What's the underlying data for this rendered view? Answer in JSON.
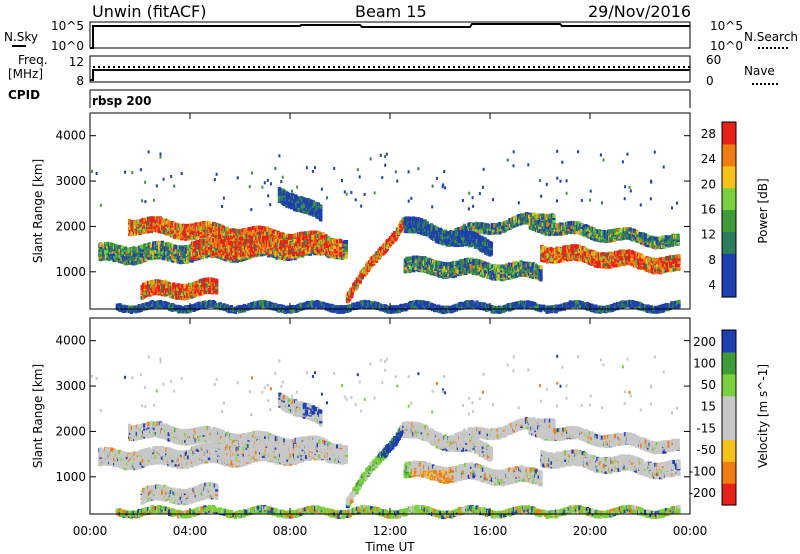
{
  "header": {
    "station": "Unwin (fitACF)",
    "beam": "Beam 15",
    "date": "29/Nov/2016"
  },
  "top_panels": {
    "nsky_label": "N.Sky",
    "nsearch_label": "N.Search",
    "nsky_ticks": [
      "10^5",
      "10^0"
    ],
    "freq_label": "Freq.",
    "freq_unit": "[MHz]",
    "freq_ticks": [
      "12",
      "8"
    ],
    "nave_label": "Nave",
    "nave_ticks": [
      "60",
      "0"
    ],
    "cpid_label": "CPID",
    "cpid_value": "rbsp 200"
  },
  "x_axis": {
    "label": "Time UT",
    "ticks": [
      "00:00",
      "04:00",
      "08:00",
      "12:00",
      "16:00",
      "20:00",
      "00:00"
    ]
  },
  "colors": {
    "red": "#e8201a",
    "orange": "#f07d12",
    "yellow": "#f5c21b",
    "light_green": "#7ad13c",
    "green": "#3f9a3a",
    "teal": "#2e7d5a",
    "blue": "#1e3fb0",
    "gray": "#c8c8c8"
  },
  "chart_data": [
    {
      "type": "heatmap",
      "title": "",
      "xlabel": "Time UT",
      "ylabel": "Slant Range [km]",
      "x_range": [
        0,
        24
      ],
      "ylim": [
        180,
        4500
      ],
      "y_ticks": [
        "4000",
        "3000",
        "2000",
        "1000"
      ],
      "colorbar": {
        "label": "Power [dB]",
        "ticks": [
          "28",
          "24",
          "20",
          "16",
          "12",
          "8",
          "4"
        ]
      }
    },
    {
      "type": "heatmap",
      "title": "",
      "xlabel": "Time UT",
      "ylabel": "Slant Range [km]",
      "x_range": [
        0,
        24
      ],
      "ylim": [
        180,
        4500
      ],
      "y_ticks": [
        "4000",
        "3000",
        "2000",
        "1000"
      ],
      "colorbar": {
        "label": "Velocity [m s^-1]",
        "ticks": [
          "200",
          "100",
          "50",
          "15",
          "-15",
          "-50",
          "-100",
          "-200"
        ]
      }
    }
  ]
}
